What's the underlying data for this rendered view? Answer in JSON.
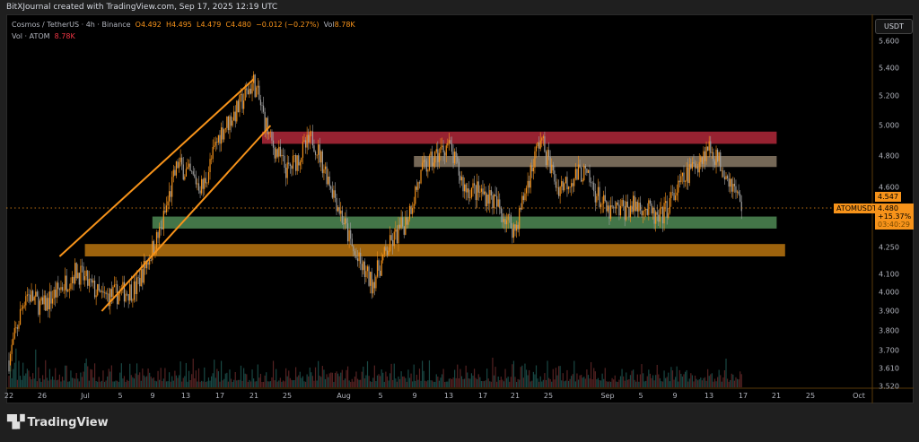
{
  "header": {
    "attribution": "BitXJournal created with TradingView.com, Sep 17, 2025 12:19 UTC"
  },
  "legend": {
    "symbol": "Cosmos / TetherUS · 4h · Binance",
    "open": "O4.492",
    "high": "H4.495",
    "low": "L4.479",
    "close": "C4.480",
    "change": "−0.012 (−0.27%)",
    "vol_label": "Vol",
    "vol_value": "8.78K",
    "vol_indicator": "Vol · ATOM",
    "vol_indicator_value": "8.78K"
  },
  "axis": {
    "currency": "USDT",
    "price_ticks": [
      "5.600",
      "5.400",
      "5.200",
      "5.000",
      "4.800",
      "4.600",
      "4.250",
      "4.100",
      "4.000",
      "3.900",
      "3.800",
      "3.700",
      "3.610",
      "3.520"
    ],
    "time_ticks": [
      "22",
      "26",
      "Jul",
      "5",
      "9",
      "13",
      "17",
      "21",
      "25",
      "Aug",
      "5",
      "9",
      "13",
      "17",
      "21",
      "25",
      "Sep",
      "5",
      "9",
      "13",
      "17",
      "21",
      "25",
      "Oct"
    ]
  },
  "price_tags": {
    "high_tag": "4.547",
    "symbol_tag": "ATOMUSDT",
    "last_price": "4.480",
    "change_pct": "+15.37%",
    "countdown": "03:40:29"
  },
  "colors": {
    "up": "#f7931a",
    "down": "#a0a0a0",
    "accent": "#f7931a",
    "zone_red": "#b2283a",
    "zone_tan": "#8a7a66",
    "zone_green": "#4f8a55",
    "zone_orange": "#b8740f"
  },
  "chart_data": {
    "type": "candlestick",
    "interval": "4h",
    "symbol": "ATOMUSDT",
    "yscale": "log",
    "ylim": [
      3.52,
      5.6
    ],
    "xlim": [
      "2025-06-22",
      "2025-10-03"
    ],
    "price_path": [
      [
        "2025-06-22",
        3.65
      ],
      [
        "2025-06-24",
        4.0
      ],
      [
        "2025-06-26",
        3.92
      ],
      [
        "2025-06-30",
        4.12
      ],
      [
        "2025-07-03",
        3.97
      ],
      [
        "2025-07-07",
        4.02
      ],
      [
        "2025-07-10",
        4.35
      ],
      [
        "2025-07-12",
        4.75
      ],
      [
        "2025-07-15",
        4.6
      ],
      [
        "2025-07-17",
        4.95
      ],
      [
        "2025-07-19",
        5.1
      ],
      [
        "2025-07-21",
        5.3
      ],
      [
        "2025-07-23",
        4.9
      ],
      [
        "2025-07-25",
        4.7
      ],
      [
        "2025-07-28",
        4.92
      ],
      [
        "2025-07-31",
        4.5
      ],
      [
        "2025-08-02",
        4.2
      ],
      [
        "2025-08-04",
        4.05
      ],
      [
        "2025-08-06",
        4.25
      ],
      [
        "2025-08-08",
        4.4
      ],
      [
        "2025-08-10",
        4.7
      ],
      [
        "2025-08-13",
        4.88
      ],
      [
        "2025-08-15",
        4.6
      ],
      [
        "2025-08-18",
        4.55
      ],
      [
        "2025-08-21",
        4.35
      ],
      [
        "2025-08-24",
        4.92
      ],
      [
        "2025-08-26",
        4.6
      ],
      [
        "2025-08-29",
        4.7
      ],
      [
        "2025-09-01",
        4.45
      ],
      [
        "2025-09-05",
        4.5
      ],
      [
        "2025-09-07",
        4.4
      ],
      [
        "2025-09-10",
        4.65
      ],
      [
        "2025-09-13",
        4.86
      ],
      [
        "2025-09-15",
        4.7
      ],
      [
        "2025-09-17",
        4.48
      ]
    ],
    "zones": [
      {
        "name": "resistance-red",
        "from": "2025-07-22",
        "to": "2025-09-21",
        "low": 4.88,
        "high": 4.96,
        "color": "#b2283a"
      },
      {
        "name": "resistance-tan",
        "from": "2025-08-09",
        "to": "2025-09-21",
        "low": 4.73,
        "high": 4.8,
        "color": "#8a7a66"
      },
      {
        "name": "support-green",
        "from": "2025-07-09",
        "to": "2025-09-21",
        "low": 4.36,
        "high": 4.43,
        "color": "#4f8a55"
      },
      {
        "name": "support-orange",
        "from": "2025-07-01",
        "to": "2025-09-22",
        "low": 4.2,
        "high": 4.27,
        "color": "#b8740f"
      }
    ],
    "channel": [
      {
        "name": "channel-upper",
        "from": [
          "2025-06-28",
          4.2
        ],
        "to": [
          "2025-07-21",
          5.32
        ]
      },
      {
        "name": "channel-lower",
        "from": [
          "2025-07-03",
          3.9
        ],
        "to": [
          "2025-07-23",
          5.0
        ]
      }
    ],
    "last_price": 4.48
  }
}
